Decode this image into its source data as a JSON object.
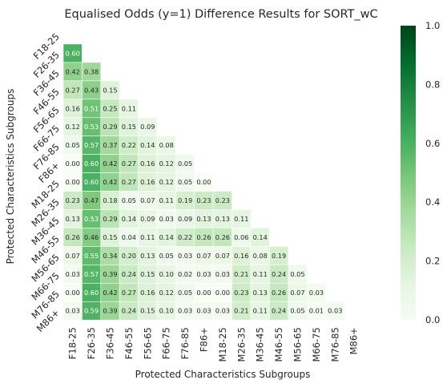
{
  "chart_data": {
    "type": "heatmap",
    "title": "Equalised Odds (y=1) Difference Results for SORT_wC",
    "xlabel": "Protected Characteristics Subgroups",
    "ylabel": "Protected Characteristics Subgroups",
    "categories": [
      "F18-25",
      "F26-35",
      "F36-45",
      "F46-55",
      "F56-65",
      "F66-75",
      "F76-85",
      "F86+",
      "M18-25",
      "M26-35",
      "M36-45",
      "M46-55",
      "M56-65",
      "M66-75",
      "M76-85",
      "M86+"
    ],
    "mask": "lower-triangle",
    "colormap": "Greens",
    "vmin": 0,
    "vmax": 1,
    "colorbar_ticks": [
      "0.0",
      "0.2",
      "0.4",
      "0.6",
      "0.8",
      "1.0"
    ],
    "rows": [
      [],
      [
        "0.60"
      ],
      [
        "0.42",
        "0.38"
      ],
      [
        "0.27",
        "0.43",
        "0.15"
      ],
      [
        "0.16",
        "0.51",
        "0.25",
        "0.11"
      ],
      [
        "0.12",
        "0.53",
        "0.29",
        "0.15",
        "0.09"
      ],
      [
        "0.05",
        "0.57",
        "0.37",
        "0.22",
        "0.14",
        "0.08"
      ],
      [
        "0.00",
        "0.60",
        "0.42",
        "0.27",
        "0.16",
        "0.12",
        "0.05"
      ],
      [
        "0.00",
        "0.60",
        "0.42",
        "0.27",
        "0.16",
        "0.12",
        "0.05",
        "0.00"
      ],
      [
        "0.23",
        "0.47",
        "0.18",
        "0.05",
        "0.07",
        "0.11",
        "0.19",
        "0.23",
        "0.23"
      ],
      [
        "0.13",
        "0.53",
        "0.29",
        "0.14",
        "0.09",
        "0.03",
        "0.09",
        "0.13",
        "0.13",
        "0.11"
      ],
      [
        "0.26",
        "0.46",
        "0.15",
        "0.04",
        "0.11",
        "0.14",
        "0.22",
        "0.26",
        "0.26",
        "0.06",
        "0.14"
      ],
      [
        "0.07",
        "0.55",
        "0.34",
        "0.20",
        "0.13",
        "0.05",
        "0.03",
        "0.07",
        "0.07",
        "0.16",
        "0.08",
        "0.19"
      ],
      [
        "0.03",
        "0.57",
        "0.39",
        "0.24",
        "0.15",
        "0.10",
        "0.02",
        "0.03",
        "0.03",
        "0.21",
        "0.11",
        "0.24",
        "0.05"
      ],
      [
        "0.00",
        "0.60",
        "0.42",
        "0.27",
        "0.16",
        "0.12",
        "0.05",
        "0.00",
        "0.00",
        "0.23",
        "0.13",
        "0.26",
        "0.07",
        "0.03"
      ],
      [
        "0.03",
        "0.59",
        "0.39",
        "0.24",
        "0.15",
        "0.10",
        "0.03",
        "0.03",
        "0.03",
        "0.21",
        "0.11",
        "0.24",
        "0.05",
        "0.01",
        "0.03"
      ]
    ]
  }
}
